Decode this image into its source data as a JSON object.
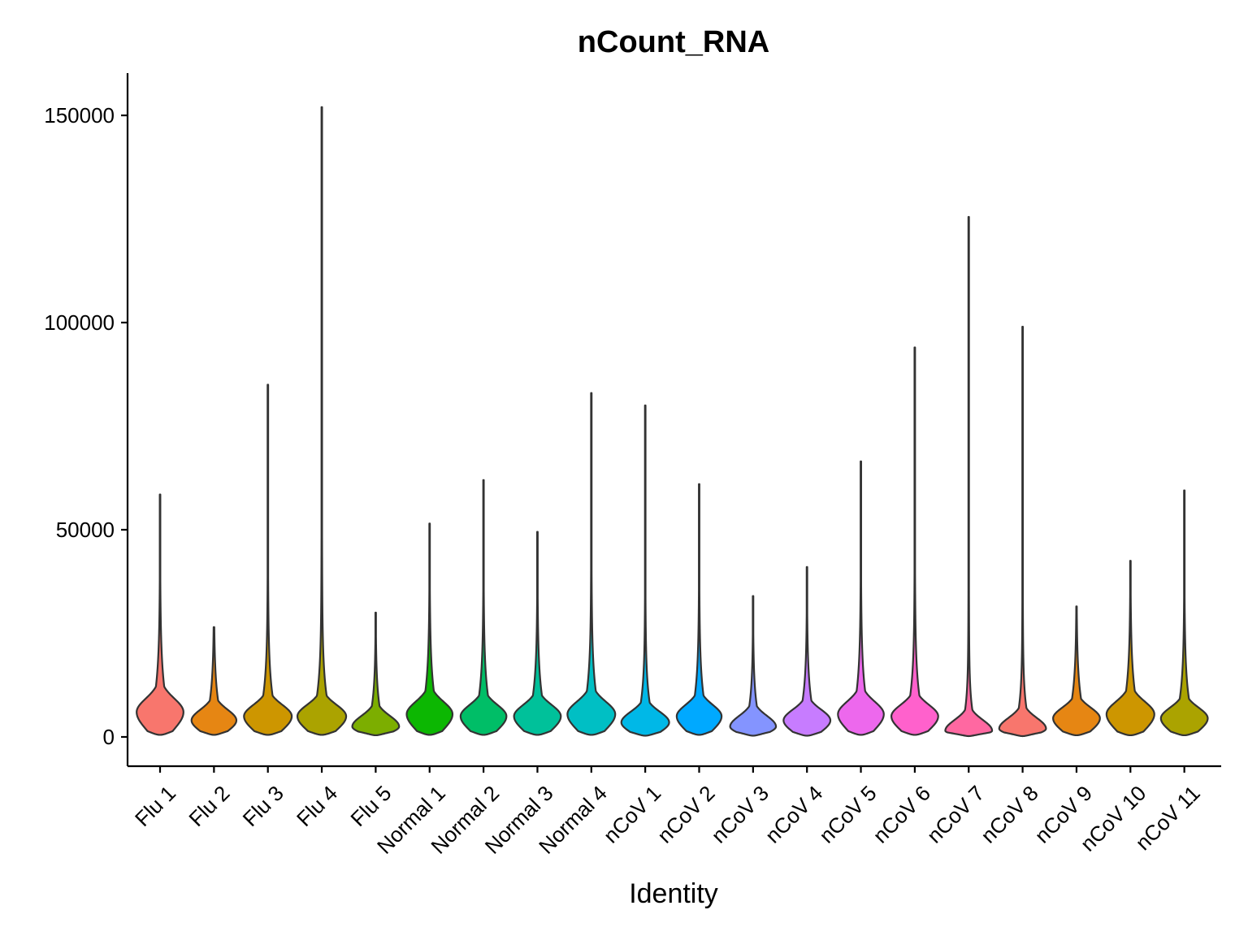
{
  "chart_data": {
    "type": "violin",
    "title": "nCount_RNA",
    "xlabel": "Identity",
    "ylabel": "",
    "ylim": [
      -7000,
      160000
    ],
    "yticks": [
      0,
      50000,
      100000,
      150000
    ],
    "ytick_labels": [
      "0",
      "50000",
      "100000",
      "150000"
    ],
    "legend": "none",
    "grid": false,
    "categories": [
      "Flu 1",
      "Flu 2",
      "Flu 3",
      "Flu 4",
      "Flu 5",
      "Normal 1",
      "Normal 2",
      "Normal 3",
      "Normal 4",
      "nCoV 1",
      "nCoV 2",
      "nCoV 3",
      "nCoV 4",
      "nCoV 5",
      "nCoV 6",
      "nCoV 7",
      "nCoV 8",
      "nCoV 9",
      "nCoV 10",
      "nCoV 11"
    ],
    "colors": [
      "#F8766D",
      "#E68613",
      "#CD9600",
      "#ABA300",
      "#7CAE00",
      "#0CB702",
      "#00BE67",
      "#00C19A",
      "#00BFC4",
      "#00B8E7",
      "#00A9FF",
      "#8494FF",
      "#C77CFF",
      "#ED68ED",
      "#FF61CC",
      "#FF68A1",
      "#F8766D",
      "#E68613",
      "#CD9600",
      "#ABA300"
    ],
    "series": [
      {
        "name": "Flu 1",
        "min": 500,
        "max": 58500,
        "mode": 6000,
        "halfwidth": 0.48
      },
      {
        "name": "Flu 2",
        "min": 500,
        "max": 26500,
        "mode": 4000,
        "halfwidth": 0.46
      },
      {
        "name": "Flu 3",
        "min": 500,
        "max": 85000,
        "mode": 5000,
        "halfwidth": 0.49
      },
      {
        "name": "Flu 4",
        "min": 500,
        "max": 152000,
        "mode": 5000,
        "halfwidth": 0.5
      },
      {
        "name": "Flu 5",
        "min": 400,
        "max": 30000,
        "mode": 2500,
        "halfwidth": 0.48
      },
      {
        "name": "Normal 1",
        "min": 500,
        "max": 51500,
        "mode": 5500,
        "halfwidth": 0.47
      },
      {
        "name": "Normal 2",
        "min": 500,
        "max": 62000,
        "mode": 5000,
        "halfwidth": 0.47
      },
      {
        "name": "Normal 3",
        "min": 500,
        "max": 49500,
        "mode": 5000,
        "halfwidth": 0.48
      },
      {
        "name": "Normal 4",
        "min": 500,
        "max": 83000,
        "mode": 5500,
        "halfwidth": 0.49
      },
      {
        "name": "nCoV 1",
        "min": 300,
        "max": 80000,
        "mode": 3500,
        "halfwidth": 0.49
      },
      {
        "name": "nCoV 2",
        "min": 500,
        "max": 61000,
        "mode": 5000,
        "halfwidth": 0.46
      },
      {
        "name": "nCoV 3",
        "min": 300,
        "max": 34000,
        "mode": 2500,
        "halfwidth": 0.47
      },
      {
        "name": "nCoV 4",
        "min": 300,
        "max": 41000,
        "mode": 4000,
        "halfwidth": 0.48
      },
      {
        "name": "nCoV 5",
        "min": 500,
        "max": 66500,
        "mode": 5500,
        "halfwidth": 0.47
      },
      {
        "name": "nCoV 6",
        "min": 500,
        "max": 94000,
        "mode": 5000,
        "halfwidth": 0.48
      },
      {
        "name": "nCoV 7",
        "min": 200,
        "max": 125500,
        "mode": 1500,
        "halfwidth": 0.48
      },
      {
        "name": "nCoV 8",
        "min": 200,
        "max": 99000,
        "mode": 2000,
        "halfwidth": 0.48
      },
      {
        "name": "nCoV 9",
        "min": 400,
        "max": 31500,
        "mode": 4500,
        "halfwidth": 0.48
      },
      {
        "name": "nCoV 10",
        "min": 400,
        "max": 42500,
        "mode": 5500,
        "halfwidth": 0.49
      },
      {
        "name": "nCoV 11",
        "min": 400,
        "max": 59500,
        "mode": 4500,
        "halfwidth": 0.48
      }
    ]
  }
}
